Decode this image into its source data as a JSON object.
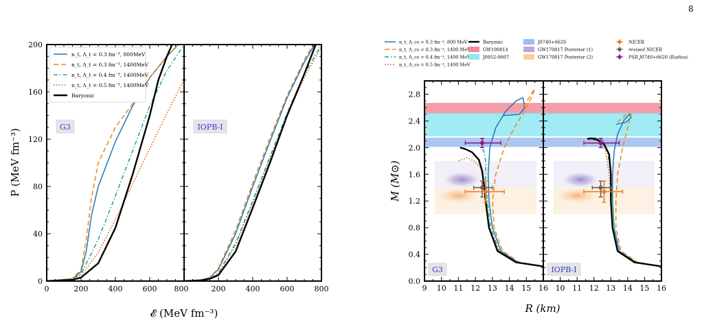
{
  "page_number": "8",
  "colors": {
    "c1": "#1f77b4",
    "c2": "#e88a10",
    "c3": "#17a589",
    "c4": "#d2540a",
    "baryonic": "#000000",
    "gw190814": "#f08c9a",
    "j0952": "#8fe8f2",
    "j0740": "#9dbcf0",
    "gw170817_1": "#b9a9dc",
    "gw170817_2": "#f8cfa0",
    "nicer": "#f07a20",
    "revised_nicer": "#7a5a50",
    "psr": "#8a1a8a",
    "tag": "#3a3ac8"
  },
  "chart_data": [
    {
      "type": "line",
      "panels": [
        "G3",
        "IOPB-I"
      ],
      "xlabel": "𝓔 (MeV fm⁻³)",
      "ylabel": "P (MeV fm⁻³)",
      "xlim": [
        0,
        800
      ],
      "ylim": [
        0,
        200
      ],
      "xticks": [
        "0",
        "200",
        "400",
        "600",
        "800",
        "200",
        "400",
        "600",
        "800"
      ],
      "yticks": [
        "0",
        "40",
        "80",
        "120",
        "160",
        "200"
      ],
      "legend_position": "upper-left",
      "series": [
        {
          "name": "n_t, Λ_t = 0.3 fm⁻³, 800MeV",
          "style": "solid",
          "color_key": "c1",
          "G3": {
            "x": [
              0,
              150,
              200,
              230,
              260,
              300,
              400,
              500,
              600,
              700,
              800
            ],
            "y": [
              0,
              2,
              8,
              25,
              55,
              80,
              118,
              148,
              172,
              190,
              205
            ]
          },
          "IOPB-I": {
            "x": [
              0,
              100,
              150,
              200,
              300,
              400,
              500,
              600,
              700,
              800
            ],
            "y": [
              0,
              1,
              3,
              10,
              40,
              80,
              118,
              155,
              185,
              210
            ]
          }
        },
        {
          "name": "n_t, Λ_t = 0.3 fm⁻³, 1400MeV",
          "style": "dashed",
          "color_key": "c2",
          "G3": {
            "x": [
              0,
              150,
              200,
              230,
              260,
              300,
              400,
              500,
              600,
              700,
              800
            ],
            "y": [
              0,
              2,
              10,
              35,
              70,
              100,
              130,
              150,
              172,
              190,
              205
            ]
          },
          "IOPB-I": {
            "x": [
              0,
              100,
              150,
              200,
              300,
              400,
              500,
              600,
              700,
              800
            ],
            "y": [
              0,
              1,
              3,
              11,
              43,
              83,
              121,
              157,
              187,
              212
            ]
          }
        },
        {
          "name": "n_t, Λ_t = 0.4 fm⁻³, 1400MeV",
          "style": "dashdot",
          "color_key": "c3",
          "G3": {
            "x": [
              0,
              150,
              200,
              300,
              400,
              500,
              600,
              700,
              800
            ],
            "y": [
              0,
              2,
              6,
              35,
              72,
              110,
              148,
              178,
              200
            ]
          },
          "IOPB-I": {
            "x": [
              0,
              100,
              150,
              200,
              300,
              400,
              500,
              600,
              700,
              800
            ],
            "y": [
              0,
              1,
              2,
              7,
              32,
              68,
              105,
              142,
              175,
              200
            ]
          }
        },
        {
          "name": "n_t, Λ_t = 0.5 fm⁻³, 1400MeV",
          "style": "dotted",
          "color_key": "c4",
          "G3": {
            "x": [
              0,
              150,
              200,
              300,
              400,
              500,
              600,
              700,
              800
            ],
            "y": [
              0,
              2,
              5,
              24,
              52,
              82,
              112,
              142,
              170
            ]
          },
          "IOPB-I": {
            "x": [
              0,
              100,
              150,
              200,
              300,
              400,
              500,
              600,
              700,
              800
            ],
            "y": [
              0,
              1,
              2,
              6,
              30,
              66,
              103,
              140,
              172,
              198
            ]
          }
        },
        {
          "name": "Baryonic",
          "style": "solid-thick",
          "color_key": "baryonic",
          "G3": {
            "x": [
              0,
              150,
              200,
              300,
              400,
              500,
              600,
              650,
              700,
              730
            ],
            "y": [
              0,
              1,
              3,
              15,
              45,
              90,
              140,
              170,
              190,
              200
            ]
          },
          "IOPB-I": {
            "x": [
              0,
              100,
              150,
              200,
              300,
              400,
              500,
              600,
              700,
              780
            ],
            "y": [
              0,
              0.5,
              2,
              5,
              25,
              62,
              100,
              140,
              175,
              205
            ]
          }
        }
      ]
    },
    {
      "type": "line",
      "panels": [
        "G3",
        "IOPB-I"
      ],
      "xlabel": "R (km)",
      "ylabel": "M (M⊙)",
      "xlim": [
        9,
        16
      ],
      "ylim": [
        0,
        3.0
      ],
      "xticks": [
        "9",
        "10",
        "11",
        "12",
        "13",
        "14",
        "15",
        "16",
        "10",
        "11",
        "12",
        "13",
        "14",
        "15",
        "16"
      ],
      "yticks": [
        "0.0",
        "0.4",
        "0.8",
        "1.2",
        "1.6",
        "2.0",
        "2.4",
        "2.8"
      ],
      "legend_entries": [
        {
          "label": "n_t, Λ_cs = 0.3 fm⁻³, 800 MeV",
          "kind": "line",
          "style": "solid",
          "color_key": "c1"
        },
        {
          "label": "n_t, Λ_cs = 0.3 fm⁻³, 1400 MeV",
          "kind": "line",
          "style": "dashed",
          "color_key": "c2"
        },
        {
          "label": "n_t, Λ_cs = 0.4 fm⁻³, 1400 MeV",
          "kind": "line",
          "style": "dashdot",
          "color_key": "c3"
        },
        {
          "label": "n_t, Λ_cs = 0.5 fm⁻³, 1400 MeV",
          "kind": "line",
          "style": "dotted",
          "color_key": "c4"
        },
        {
          "label": "Baryonic",
          "kind": "line",
          "style": "solid-thick",
          "color_key": "baryonic"
        },
        {
          "label": "GW190814",
          "kind": "patch",
          "color_key": "gw190814"
        },
        {
          "label": "J0952-0607",
          "kind": "patch",
          "color_key": "j0952"
        },
        {
          "label": "J0740+6620",
          "kind": "patch",
          "color_key": "j0740"
        },
        {
          "label": "GW170817 Posterior (1)",
          "kind": "patch",
          "color_key": "gw170817_1"
        },
        {
          "label": "GW170817 Posterior (2)",
          "kind": "patch",
          "color_key": "gw170817_2"
        },
        {
          "label": "NICER",
          "kind": "marker",
          "color_key": "nicer"
        },
        {
          "label": "revised NICER",
          "kind": "marker",
          "color_key": "revised_nicer"
        },
        {
          "label": "PSR J0740+6620 (Radius)",
          "kind": "marker",
          "color_key": "psr"
        }
      ],
      "bands": [
        {
          "name": "GW190814",
          "ymin": 2.5,
          "ymax": 2.67,
          "color_key": "gw190814"
        },
        {
          "name": "J0952-0607",
          "ymin": 2.17,
          "ymax": 2.52,
          "color_key": "j0952"
        },
        {
          "name": "J0740+6620",
          "ymin": 2.01,
          "ymax": 2.15,
          "color_key": "j0740"
        }
      ],
      "error_points": [
        {
          "name": "NICER",
          "x": 12.6,
          "xerr": [
            11.4,
            13.7
          ],
          "y": 1.34,
          "yerr": [
            1.18,
            1.5
          ],
          "color_key": "nicer"
        },
        {
          "name": "revised NICER",
          "x": 12.4,
          "xerr": [
            11.9,
            13.0
          ],
          "y": 1.4,
          "yerr": [
            1.26,
            1.5
          ],
          "color_key": "revised_nicer"
        },
        {
          "name": "PSR J0740+6620 (Radius)",
          "x": 12.4,
          "xerr": [
            11.4,
            13.5
          ],
          "y": 2.07,
          "yerr": [
            2.0,
            2.14
          ],
          "color_key": "psr"
        }
      ],
      "series": [
        {
          "name": "0.3, 800",
          "style": "solid",
          "color_key": "c1",
          "G3": {
            "x": [
              16,
              14.5,
              13.5,
              13.0,
              12.8,
              12.75,
              12.85,
              13.2,
              13.8,
              14.4,
              14.8,
              14.9,
              14.6,
              13.6
            ],
            "y": [
              0.22,
              0.28,
              0.45,
              0.8,
              1.2,
              1.6,
              2.0,
              2.3,
              2.55,
              2.7,
              2.75,
              2.6,
              2.5,
              2.48
            ]
          },
          "IOPB-I": {
            "x": [
              16,
              14.5,
              13.5,
              13.2,
              13.1,
              13.1,
              13.2,
              13.4,
              13.8,
              14.1,
              14.2,
              13.9,
              13.3
            ],
            "y": [
              0.22,
              0.28,
              0.45,
              0.8,
              1.2,
              1.6,
              1.95,
              2.2,
              2.42,
              2.5,
              2.45,
              2.38,
              2.35
            ]
          }
        },
        {
          "name": "0.3, 1400",
          "style": "dashed",
          "color_key": "c2",
          "G3": {
            "x": [
              16,
              14.6,
              13.6,
              13.1,
              13.0,
              13.2,
              13.7,
              14.3,
              14.9,
              15.3,
              15.5,
              15.4,
              14.8
            ],
            "y": [
              0.22,
              0.28,
              0.45,
              0.8,
              1.2,
              1.6,
              2.0,
              2.3,
              2.55,
              2.75,
              2.88,
              2.85,
              2.6
            ]
          },
          "IOPB-I": {
            "x": [
              16,
              14.6,
              13.6,
              13.3,
              13.3,
              13.4,
              13.7,
              14.0,
              14.2,
              14.0,
              13.4
            ],
            "y": [
              0.22,
              0.28,
              0.45,
              0.8,
              1.2,
              1.6,
              2.0,
              2.3,
              2.5,
              2.52,
              2.38
            ]
          }
        },
        {
          "name": "0.4, 1400",
          "style": "dashdot",
          "color_key": "c3",
          "G3": {
            "x": [
              16,
              14.4,
              13.4,
              12.9,
              12.7,
              12.6,
              12.6,
              12.5,
              12.3
            ],
            "y": [
              0.22,
              0.28,
              0.45,
              0.8,
              1.2,
              1.5,
              1.8,
              1.95,
              2.0
            ]
          },
          "IOPB-I": {
            "x": [
              16,
              14.4,
              13.4,
              13.2,
              13.1,
              13.0,
              12.8,
              12.5,
              12.0,
              11.7
            ],
            "y": [
              0.22,
              0.28,
              0.45,
              0.8,
              1.2,
              1.6,
              1.95,
              2.12,
              2.15,
              2.12
            ]
          }
        },
        {
          "name": "0.5, 1400",
          "style": "dotted",
          "color_key": "c4",
          "G3": {
            "x": [
              16,
              14.4,
              13.4,
              12.8,
              12.6,
              12.5,
              12.3,
              11.9,
              11.5,
              11.0
            ],
            "y": [
              0.22,
              0.28,
              0.45,
              0.8,
              1.2,
              1.5,
              1.7,
              1.8,
              1.85,
              1.8
            ]
          },
          "IOPB-I": {
            "x": [
              16,
              14.4,
              13.4,
              13.1,
              13.0,
              12.9,
              12.7,
              12.3,
              11.8,
              11.6
            ],
            "y": [
              0.22,
              0.28,
              0.45,
              0.8,
              1.2,
              1.6,
              1.95,
              2.1,
              2.12,
              2.1
            ]
          }
        },
        {
          "name": "Baryonic",
          "style": "solid-thick",
          "color_key": "baryonic",
          "G3": {
            "x": [
              16,
              14.4,
              13.3,
              12.8,
              12.6,
              12.5,
              12.4,
              12.2,
              11.8,
              11.4,
              11.1
            ],
            "y": [
              0.22,
              0.28,
              0.45,
              0.8,
              1.2,
              1.45,
              1.65,
              1.82,
              1.93,
              1.98,
              2.0
            ]
          },
          "IOPB-I": {
            "x": [
              16,
              14.4,
              13.4,
              13.1,
              13.0,
              13.0,
              12.9,
              12.6,
              12.2,
              11.8,
              11.6
            ],
            "y": [
              0.22,
              0.28,
              0.45,
              0.8,
              1.2,
              1.6,
              1.9,
              2.05,
              2.12,
              2.14,
              2.13
            ]
          }
        }
      ]
    }
  ]
}
